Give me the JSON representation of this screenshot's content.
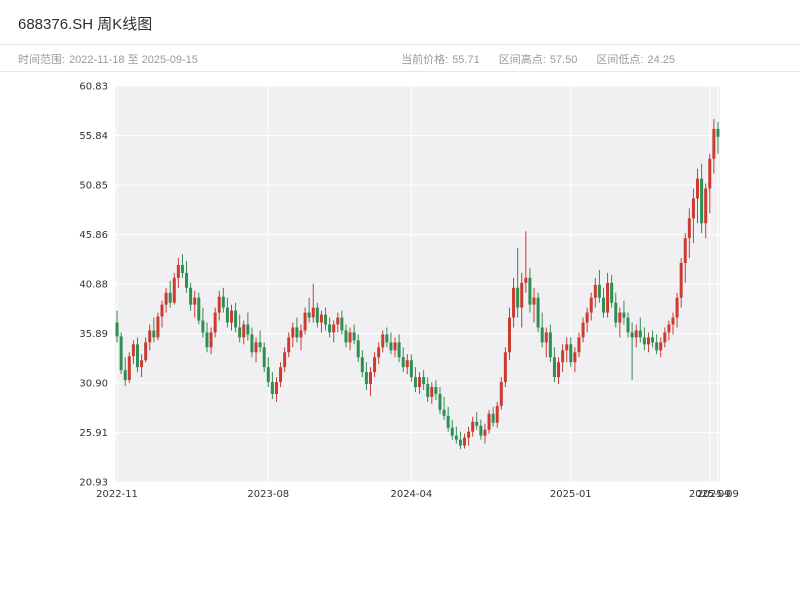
{
  "header": {
    "title": "688376.SH 周K线图"
  },
  "subheader": {
    "time_range_label": "时间范围:",
    "time_range_value": "2022-11-18 至 2025-09-15",
    "current_price_label": "当前价格:",
    "current_price_value": "55.71",
    "range_high_label": "区间高点:",
    "range_high_value": "57.50",
    "range_low_label": "区间低点:",
    "range_low_value": "24.25"
  },
  "chart_data": {
    "type": "candlestick",
    "title": "688376.SH 周K线图",
    "xlabel": "",
    "ylabel": "",
    "grid": true,
    "plot_bg": "#f0f0f2",
    "grid_color": "#ffffff",
    "up_color": "#cb3b31",
    "down_color": "#2f8f52",
    "ylim": [
      20.93,
      60.83
    ],
    "y_ticks": [
      {
        "value": 20.93,
        "label": "20.93"
      },
      {
        "value": 25.91,
        "label": "25.91"
      },
      {
        "value": 30.9,
        "label": "30.90"
      },
      {
        "value": 35.89,
        "label": "35.89"
      },
      {
        "value": 40.88,
        "label": "40.88"
      },
      {
        "value": 45.86,
        "label": "45.86"
      },
      {
        "value": 50.85,
        "label": "50.85"
      },
      {
        "value": 55.84,
        "label": "55.84"
      },
      {
        "value": 60.83,
        "label": "60.83"
      }
    ],
    "x_ticks": [
      {
        "index": 0,
        "label": "2022-11"
      },
      {
        "index": 37,
        "label": "2023-08"
      },
      {
        "index": 72,
        "label": "2024-04"
      },
      {
        "index": 111,
        "label": "2025-01"
      },
      {
        "index": 145,
        "label": "2025-09"
      },
      {
        "index": 147,
        "label": "2025-09"
      }
    ],
    "candles": [
      [
        "2022-11-18",
        37.0,
        38.2,
        35.0,
        35.6
      ],
      [
        "2022-11-25",
        35.6,
        36.0,
        31.8,
        32.2
      ],
      [
        "2022-12-02",
        32.2,
        33.5,
        30.6,
        31.2
      ],
      [
        "2022-12-09",
        31.2,
        34.0,
        30.9,
        33.6
      ],
      [
        "2022-12-16",
        33.6,
        35.2,
        32.8,
        34.8
      ],
      [
        "2022-12-23",
        34.8,
        35.5,
        32.0,
        32.5
      ],
      [
        "2022-12-30",
        32.5,
        33.8,
        31.5,
        33.2
      ],
      [
        "2023-01-06",
        33.2,
        35.5,
        33.0,
        35.0
      ],
      [
        "2023-01-13",
        35.0,
        36.8,
        34.2,
        36.2
      ],
      [
        "2023-01-20",
        36.2,
        37.5,
        35.0,
        35.5
      ],
      [
        "2023-01-27",
        35.5,
        38.0,
        35.2,
        37.6
      ],
      [
        "2023-02-03",
        37.6,
        39.2,
        36.5,
        38.8
      ],
      [
        "2023-02-10",
        38.8,
        40.5,
        38.0,
        40.0
      ],
      [
        "2023-02-17",
        40.0,
        41.2,
        38.5,
        39.0
      ],
      [
        "2023-02-24",
        39.0,
        42.0,
        38.8,
        41.5
      ],
      [
        "2023-03-03",
        41.5,
        43.5,
        40.5,
        42.8
      ],
      [
        "2023-03-10",
        42.8,
        43.9,
        41.5,
        42.0
      ],
      [
        "2023-03-17",
        42.0,
        43.2,
        40.0,
        40.5
      ],
      [
        "2023-03-24",
        40.5,
        41.0,
        38.2,
        38.8
      ],
      [
        "2023-03-31",
        38.8,
        40.2,
        37.5,
        39.5
      ],
      [
        "2023-04-07",
        39.5,
        40.0,
        36.8,
        37.2
      ],
      [
        "2023-04-14",
        37.2,
        38.5,
        35.5,
        36.0
      ],
      [
        "2023-04-21",
        36.0,
        37.0,
        34.0,
        34.5
      ],
      [
        "2023-04-28",
        34.5,
        36.5,
        33.8,
        36.0
      ],
      [
        "2023-05-05",
        36.0,
        38.5,
        35.5,
        38.0
      ],
      [
        "2023-05-12",
        38.0,
        40.2,
        37.2,
        39.6
      ],
      [
        "2023-05-19",
        39.6,
        40.5,
        38.0,
        38.5
      ],
      [
        "2023-05-26",
        38.5,
        39.5,
        36.5,
        37.0
      ],
      [
        "2023-06-02",
        37.0,
        38.8,
        36.2,
        38.2
      ],
      [
        "2023-06-09",
        38.2,
        39.0,
        36.0,
        36.5
      ],
      [
        "2023-06-16",
        36.5,
        37.8,
        35.0,
        35.5
      ],
      [
        "2023-06-23",
        35.5,
        37.2,
        34.8,
        36.8
      ],
      [
        "2023-06-30",
        36.8,
        38.0,
        35.2,
        35.8
      ],
      [
        "2023-07-07",
        35.8,
        36.5,
        33.5,
        34.0
      ],
      [
        "2023-07-14",
        34.0,
        35.5,
        33.0,
        35.0
      ],
      [
        "2023-07-21",
        35.0,
        36.2,
        34.0,
        34.5
      ],
      [
        "2023-07-28",
        34.5,
        35.0,
        32.0,
        32.5
      ],
      [
        "2023-08-04",
        32.5,
        33.5,
        30.5,
        31.0
      ],
      [
        "2023-08-11",
        31.0,
        32.0,
        29.3,
        29.8
      ],
      [
        "2023-08-18",
        29.8,
        31.5,
        29.0,
        31.0
      ],
      [
        "2023-08-25",
        31.0,
        33.0,
        30.5,
        32.5
      ],
      [
        "2023-09-01",
        32.5,
        34.5,
        32.0,
        34.0
      ],
      [
        "2023-09-08",
        34.0,
        36.0,
        33.5,
        35.5
      ],
      [
        "2023-09-15",
        35.5,
        37.0,
        34.5,
        36.5
      ],
      [
        "2023-09-22",
        36.5,
        37.5,
        35.0,
        35.5
      ],
      [
        "2023-09-29",
        35.5,
        36.8,
        34.2,
        36.2
      ],
      [
        "2023-10-06",
        36.2,
        38.5,
        35.8,
        38.0
      ],
      [
        "2023-10-13",
        38.0,
        39.5,
        37.0,
        37.5
      ],
      [
        "2023-10-20",
        37.5,
        40.9,
        37.0,
        38.5
      ],
      [
        "2023-10-27",
        38.5,
        39.0,
        36.5,
        37.0
      ],
      [
        "2023-11-03",
        37.0,
        38.2,
        36.0,
        37.8
      ],
      [
        "2023-11-10",
        37.8,
        38.5,
        36.2,
        36.8
      ],
      [
        "2023-11-17",
        36.8,
        37.5,
        35.5,
        36.0
      ],
      [
        "2023-11-24",
        36.0,
        37.2,
        35.0,
        36.8
      ],
      [
        "2023-12-01",
        36.8,
        38.0,
        36.0,
        37.5
      ],
      [
        "2023-12-08",
        37.5,
        38.2,
        35.8,
        36.2
      ],
      [
        "2023-12-15",
        36.2,
        36.8,
        34.5,
        35.0
      ],
      [
        "2023-12-22",
        35.0,
        36.5,
        34.2,
        36.0
      ],
      [
        "2023-12-29",
        36.0,
        36.8,
        34.8,
        35.2
      ],
      [
        "2024-01-05",
        35.2,
        35.8,
        33.0,
        33.5
      ],
      [
        "2024-01-12",
        33.5,
        34.2,
        31.5,
        32.0
      ],
      [
        "2024-01-19",
        32.0,
        33.0,
        30.2,
        30.8
      ],
      [
        "2024-01-26",
        30.8,
        32.5,
        29.6,
        32.0
      ],
      [
        "2024-02-02",
        32.0,
        34.0,
        31.5,
        33.5
      ],
      [
        "2024-02-09",
        33.5,
        35.0,
        32.8,
        34.5
      ],
      [
        "2024-02-16",
        34.5,
        36.2,
        34.0,
        35.8
      ],
      [
        "2024-02-23",
        35.8,
        36.5,
        34.5,
        35.0
      ],
      [
        "2024-03-01",
        35.0,
        36.0,
        33.8,
        34.2
      ],
      [
        "2024-03-08",
        34.2,
        35.5,
        33.5,
        35.0
      ],
      [
        "2024-03-15",
        35.0,
        35.8,
        33.0,
        33.5
      ],
      [
        "2024-03-22",
        33.5,
        34.5,
        32.0,
        32.5
      ],
      [
        "2024-03-29",
        32.5,
        33.8,
        31.8,
        33.2
      ],
      [
        "2024-04-05",
        33.2,
        33.8,
        31.0,
        31.5
      ],
      [
        "2024-04-12",
        31.5,
        32.5,
        30.0,
        30.5
      ],
      [
        "2024-04-19",
        30.5,
        32.0,
        29.8,
        31.5
      ],
      [
        "2024-04-26",
        31.5,
        32.2,
        30.2,
        30.8
      ],
      [
        "2024-05-03",
        30.8,
        31.5,
        29.0,
        29.5
      ],
      [
        "2024-05-10",
        29.5,
        31.0,
        28.8,
        30.5
      ],
      [
        "2024-05-17",
        30.5,
        31.2,
        29.2,
        29.8
      ],
      [
        "2024-05-24",
        29.8,
        30.5,
        27.8,
        28.2
      ],
      [
        "2024-05-31",
        28.2,
        29.5,
        27.2,
        27.6
      ],
      [
        "2024-06-07",
        27.6,
        28.5,
        26.0,
        26.4
      ],
      [
        "2024-06-14",
        26.4,
        27.2,
        25.2,
        25.6
      ],
      [
        "2024-06-21",
        25.6,
        26.5,
        24.8,
        25.2
      ],
      [
        "2024-06-28",
        25.2,
        26.0,
        24.25,
        24.6
      ],
      [
        "2024-07-05",
        24.6,
        25.8,
        24.3,
        25.4
      ],
      [
        "2024-07-12",
        25.4,
        26.5,
        24.6,
        26.0
      ],
      [
        "2024-07-19",
        26.0,
        27.5,
        25.5,
        27.0
      ],
      [
        "2024-07-26",
        27.0,
        28.0,
        26.2,
        26.6
      ],
      [
        "2024-08-02",
        26.6,
        27.2,
        25.2,
        25.6
      ],
      [
        "2024-08-09",
        25.6,
        26.8,
        24.8,
        26.2
      ],
      [
        "2024-08-16",
        26.2,
        28.2,
        25.8,
        27.8
      ],
      [
        "2024-08-23",
        27.8,
        28.5,
        26.5,
        26.9
      ],
      [
        "2024-08-30",
        26.9,
        29.0,
        26.4,
        28.6
      ],
      [
        "2024-09-06",
        28.6,
        31.5,
        28.2,
        31.0
      ],
      [
        "2024-09-13",
        31.0,
        34.5,
        30.5,
        34.0
      ],
      [
        "2024-09-20",
        34.0,
        38.5,
        33.2,
        37.5
      ],
      [
        "2024-09-27",
        37.5,
        41.5,
        36.5,
        40.5
      ],
      [
        "2024-10-04",
        40.5,
        44.5,
        37.5,
        38.5
      ],
      [
        "2024-10-11",
        38.5,
        42.0,
        36.5,
        41.0
      ],
      [
        "2024-10-18",
        41.0,
        46.2,
        40.0,
        41.5
      ],
      [
        "2024-10-25",
        41.5,
        42.5,
        38.0,
        38.8
      ],
      [
        "2024-11-01",
        38.8,
        40.5,
        37.0,
        39.5
      ],
      [
        "2024-11-08",
        39.5,
        40.0,
        36.0,
        36.5
      ],
      [
        "2024-11-15",
        36.5,
        38.0,
        34.5,
        35.0
      ],
      [
        "2024-11-22",
        35.0,
        36.5,
        33.5,
        36.0
      ],
      [
        "2024-11-29",
        36.0,
        36.8,
        33.0,
        33.5
      ],
      [
        "2024-12-06",
        33.5,
        34.5,
        31.0,
        31.5
      ],
      [
        "2024-12-13",
        31.5,
        33.5,
        30.8,
        33.0
      ],
      [
        "2024-12-20",
        33.0,
        34.8,
        32.0,
        34.2
      ],
      [
        "2024-12-27",
        34.2,
        35.5,
        33.0,
        34.8
      ],
      [
        "2025-01-03",
        34.8,
        35.5,
        32.5,
        33.0
      ],
      [
        "2025-01-10",
        33.0,
        34.5,
        32.0,
        34.0
      ],
      [
        "2025-01-17",
        34.0,
        36.0,
        33.5,
        35.5
      ],
      [
        "2025-01-24",
        35.5,
        37.5,
        35.0,
        37.0
      ],
      [
        "2025-01-31",
        37.0,
        38.5,
        36.0,
        38.0
      ],
      [
        "2025-02-07",
        38.0,
        40.0,
        37.2,
        39.5
      ],
      [
        "2025-02-14",
        39.5,
        41.5,
        38.5,
        40.8
      ],
      [
        "2025-02-21",
        40.8,
        42.3,
        39.0,
        39.5
      ],
      [
        "2025-02-28",
        39.5,
        40.5,
        37.5,
        38.0
      ],
      [
        "2025-03-07",
        38.0,
        42.0,
        37.5,
        41.0
      ],
      [
        "2025-03-14",
        41.0,
        41.8,
        38.5,
        39.0
      ],
      [
        "2025-03-21",
        39.0,
        40.0,
        36.5,
        37.0
      ],
      [
        "2025-03-28",
        37.0,
        38.5,
        35.5,
        38.0
      ],
      [
        "2025-04-04",
        38.0,
        39.2,
        36.8,
        37.5
      ],
      [
        "2025-04-11",
        37.5,
        38.0,
        35.5,
        36.0
      ],
      [
        "2025-04-18",
        36.0,
        37.0,
        31.2,
        35.5
      ],
      [
        "2025-04-25",
        35.5,
        36.8,
        34.5,
        36.2
      ],
      [
        "2025-05-02",
        36.2,
        37.5,
        35.0,
        35.5
      ],
      [
        "2025-05-09",
        35.5,
        36.5,
        34.2,
        34.8
      ],
      [
        "2025-05-16",
        34.8,
        36.0,
        34.0,
        35.5
      ],
      [
        "2025-05-23",
        35.5,
        36.2,
        34.5,
        35.0
      ],
      [
        "2025-05-30",
        35.0,
        35.8,
        33.8,
        34.2
      ],
      [
        "2025-06-06",
        34.2,
        35.5,
        33.5,
        35.0
      ],
      [
        "2025-06-13",
        35.0,
        36.5,
        34.5,
        36.0
      ],
      [
        "2025-06-20",
        36.0,
        37.2,
        35.2,
        36.8
      ],
      [
        "2025-06-27",
        36.8,
        38.0,
        35.8,
        37.5
      ],
      [
        "2025-07-04",
        37.5,
        40.0,
        36.5,
        39.5
      ],
      [
        "2025-07-11",
        39.5,
        43.5,
        38.5,
        43.0
      ],
      [
        "2025-07-18",
        43.0,
        46.0,
        41.0,
        45.5
      ],
      [
        "2025-07-25",
        45.5,
        48.5,
        43.5,
        47.5
      ],
      [
        "2025-08-01",
        47.5,
        50.5,
        45.0,
        49.5
      ],
      [
        "2025-08-08",
        49.5,
        52.5,
        47.0,
        51.5
      ],
      [
        "2025-08-15",
        51.5,
        53.0,
        46.0,
        47.0
      ],
      [
        "2025-08-22",
        47.0,
        51.0,
        45.5,
        50.5
      ],
      [
        "2025-08-29",
        50.5,
        54.0,
        48.0,
        53.5
      ],
      [
        "2025-09-05",
        53.5,
        57.5,
        52.0,
        56.5
      ],
      [
        "2025-09-12",
        56.5,
        57.2,
        54.0,
        55.71
      ]
    ]
  }
}
